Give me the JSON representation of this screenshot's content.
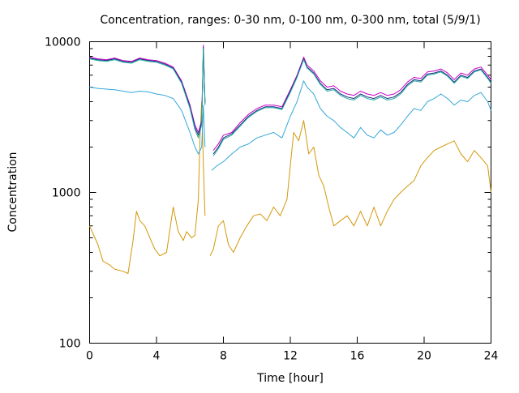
{
  "chart_data": {
    "type": "line",
    "title": "Concentration, ranges: 0-30 nm, 0-100 nm, 0-300 nm, total (5/9/1)",
    "xlabel": "Time [hour]",
    "ylabel": "Concentration",
    "xlim": [
      0,
      24
    ],
    "ylim": [
      100,
      10000
    ],
    "yscale": "log",
    "grid": false,
    "legend": "none",
    "x_ticks": [
      0,
      4,
      8,
      12,
      16,
      20,
      24
    ],
    "x_tick_labels": [
      "0",
      "4",
      "8",
      "12",
      "16",
      "20",
      "24"
    ],
    "y_ticks": [
      100,
      1000,
      10000
    ],
    "y_tick_labels": [
      "100",
      "1000",
      "10000"
    ],
    "series": [
      {
        "color": "#d4980a",
        "x": [
          0,
          0.5,
          0.8,
          1.2,
          1.5,
          2.0,
          2.3,
          2.6,
          2.8,
          3.0,
          3.3,
          3.6,
          3.9,
          4.2,
          4.6,
          5.0,
          5.3,
          5.6,
          5.8,
          6.1,
          6.3,
          6.5,
          6.6,
          6.7,
          6.8,
          6.9,
          7.0,
          7.2,
          7.4,
          7.7,
          8.0,
          8.3,
          8.6,
          9.0,
          9.4,
          9.8,
          10.2,
          10.6,
          11.0,
          11.4,
          11.8,
          12.2,
          12.5,
          12.8,
          13.1,
          13.4,
          13.7,
          14.0,
          14.3,
          14.6,
          15.0,
          15.4,
          15.8,
          16.2,
          16.6,
          17.0,
          17.4,
          17.8,
          18.2,
          18.6,
          19.0,
          19.4,
          19.8,
          20.2,
          20.6,
          21.0,
          21.4,
          21.8,
          22.2,
          22.6,
          23.0,
          23.4,
          23.8,
          24.0
        ],
        "y": [
          600,
          450,
          350,
          330,
          310,
          300,
          290,
          480,
          750,
          650,
          600,
          500,
          420,
          380,
          400,
          800,
          550,
          480,
          550,
          500,
          520,
          900,
          2300,
          4000,
          1500,
          700,
          null,
          380,
          420,
          600,
          650,
          450,
          400,
          500,
          600,
          700,
          720,
          650,
          800,
          700,
          900,
          2500,
          2200,
          3000,
          1800,
          2000,
          1300,
          1100,
          800,
          600,
          650,
          700,
          600,
          750,
          600,
          800,
          600,
          750,
          900,
          1000,
          1100,
          1200,
          1500,
          1700,
          1900,
          2000,
          2100,
          2200,
          1800,
          1600,
          1900,
          1700,
          1500,
          1000
        ]
      },
      {
        "color": "#35a7d8",
        "x": [
          0,
          0.5,
          1.0,
          1.5,
          2.0,
          2.5,
          3.0,
          3.5,
          4.0,
          4.5,
          5.0,
          5.5,
          6.0,
          6.3,
          6.5,
          6.7,
          6.8,
          6.9,
          7.0,
          7.3,
          7.6,
          8.0,
          8.5,
          9.0,
          9.5,
          10.0,
          10.5,
          11.0,
          11.5,
          12.0,
          12.4,
          12.8,
          13.0,
          13.4,
          13.8,
          14.2,
          14.6,
          15.0,
          15.4,
          15.8,
          16.2,
          16.6,
          17.0,
          17.4,
          17.8,
          18.2,
          18.6,
          19.0,
          19.4,
          19.8,
          20.2,
          20.6,
          21.0,
          21.4,
          21.8,
          22.2,
          22.6,
          23.0,
          23.4,
          23.8,
          24.0
        ],
        "y": [
          5000,
          4900,
          4850,
          4800,
          4700,
          4600,
          4700,
          4650,
          4500,
          4400,
          4200,
          3500,
          2500,
          2000,
          1800,
          2000,
          3800,
          2000,
          null,
          1400,
          1500,
          1600,
          1800,
          2000,
          2100,
          2300,
          2400,
          2500,
          2300,
          3200,
          4000,
          5500,
          5000,
          4500,
          3600,
          3200,
          3000,
          2700,
          2500,
          2300,
          2700,
          2400,
          2300,
          2600,
          2400,
          2500,
          2800,
          3200,
          3600,
          3500,
          4000,
          4200,
          4500,
          4200,
          3800,
          4100,
          4000,
          4400,
          4600,
          4000,
          3500
        ]
      },
      {
        "color": "#c800c8",
        "x": [
          0,
          0.5,
          1.0,
          1.5,
          2.0,
          2.5,
          3.0,
          3.5,
          4.0,
          4.5,
          5.0,
          5.5,
          6.0,
          6.3,
          6.5,
          6.7,
          6.8,
          6.9,
          7.0,
          7.4,
          7.7,
          8.0,
          8.5,
          9.0,
          9.5,
          10.0,
          10.5,
          11.0,
          11.5,
          12.0,
          12.4,
          12.8,
          13.0,
          13.4,
          13.8,
          14.2,
          14.6,
          15.0,
          15.4,
          15.8,
          16.2,
          16.6,
          17.0,
          17.4,
          17.8,
          18.2,
          18.6,
          19.0,
          19.4,
          19.8,
          20.2,
          20.6,
          21.0,
          21.4,
          21.8,
          22.2,
          22.6,
          23.0,
          23.4,
          23.8,
          24.0
        ],
        "y": [
          7900,
          7700,
          7600,
          7800,
          7500,
          7400,
          7800,
          7600,
          7500,
          7200,
          6800,
          5500,
          3800,
          2800,
          2500,
          3000,
          9500,
          4000,
          null,
          1900,
          2100,
          2400,
          2500,
          2900,
          3300,
          3600,
          3800,
          3800,
          3700,
          4800,
          6000,
          7900,
          7000,
          6400,
          5500,
          5000,
          5100,
          4700,
          4500,
          4400,
          4700,
          4500,
          4400,
          4600,
          4400,
          4500,
          4800,
          5400,
          5800,
          5700,
          6300,
          6400,
          6600,
          6200,
          5600,
          6200,
          6000,
          6600,
          6800,
          6000,
          5600
        ]
      },
      {
        "color": "#1a2a80",
        "x": [
          0,
          0.5,
          1.0,
          1.5,
          2.0,
          2.5,
          3.0,
          3.5,
          4.0,
          4.5,
          5.0,
          5.5,
          6.0,
          6.3,
          6.5,
          6.7,
          6.8,
          6.9,
          7.0,
          7.4,
          7.7,
          8.0,
          8.5,
          9.0,
          9.5,
          10.0,
          10.5,
          11.0,
          11.5,
          12.0,
          12.4,
          12.8,
          13.0,
          13.4,
          13.8,
          14.2,
          14.6,
          15.0,
          15.4,
          15.8,
          16.2,
          16.6,
          17.0,
          17.4,
          17.8,
          18.2,
          18.6,
          19.0,
          19.4,
          19.8,
          20.2,
          20.6,
          21.0,
          21.4,
          21.8,
          22.2,
          22.6,
          23.0,
          23.4,
          23.8,
          24.0
        ],
        "y": [
          7800,
          7600,
          7500,
          7700,
          7400,
          7300,
          7700,
          7500,
          7400,
          7100,
          6700,
          5400,
          3700,
          2700,
          2400,
          2900,
          9200,
          3900,
          null,
          1800,
          2000,
          2300,
          2450,
          2800,
          3200,
          3500,
          3700,
          3700,
          3600,
          4700,
          5900,
          7700,
          6800,
          6200,
          5300,
          4800,
          4900,
          4500,
          4300,
          4200,
          4500,
          4300,
          4200,
          4400,
          4200,
          4300,
          4600,
          5200,
          5600,
          5500,
          6100,
          6200,
          6400,
          6000,
          5400,
          6000,
          5800,
          6400,
          6600,
          5800,
          5400
        ]
      },
      {
        "color": "#20b0a0",
        "x": [
          0,
          0.5,
          1.0,
          1.5,
          2.0,
          2.5,
          3.0,
          3.5,
          4.0,
          4.5,
          5.0,
          5.5,
          6.0,
          6.3,
          6.5,
          6.7,
          6.8,
          6.9,
          7.0,
          7.4,
          7.7,
          8.0,
          8.5,
          9.0,
          9.5,
          10.0,
          10.5,
          11.0,
          11.5,
          12.0,
          12.4,
          12.8,
          13.0,
          13.4,
          13.8,
          14.2,
          14.6,
          15.0,
          15.4,
          15.8,
          16.2,
          16.6,
          17.0,
          17.4,
          17.8,
          18.2,
          18.6,
          19.0,
          19.4,
          19.8,
          20.2,
          20.6,
          21.0,
          21.4,
          21.8,
          22.2,
          22.6,
          23.0,
          23.4,
          23.8,
          24.0
        ],
        "y": [
          7700,
          7500,
          7400,
          7600,
          7300,
          7200,
          7600,
          7400,
          7300,
          7000,
          6600,
          5300,
          3600,
          2600,
          2300,
          2800,
          9000,
          3800,
          null,
          1750,
          1950,
          2250,
          2400,
          2750,
          3150,
          3450,
          3650,
          3650,
          3550,
          4600,
          5800,
          7600,
          6700,
          6100,
          5200,
          4700,
          4800,
          4400,
          4200,
          4100,
          4400,
          4200,
          4100,
          4300,
          4100,
          4200,
          4500,
          5100,
          5500,
          5400,
          6000,
          6100,
          6300,
          5900,
          5300,
          5900,
          5700,
          6300,
          6500,
          5700,
          5300
        ]
      }
    ]
  }
}
